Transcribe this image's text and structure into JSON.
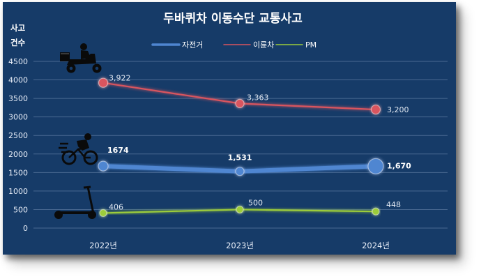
{
  "chart_data": {
    "type": "line",
    "title": "두바퀴차 이동수단 교통사고",
    "ylabel_line1": "사고",
    "ylabel_line2": "건수",
    "categories": [
      "2022년",
      "2023년",
      "2024년"
    ],
    "ylim": [
      0,
      4500
    ],
    "yticks": [
      0,
      500,
      1000,
      1500,
      2000,
      2500,
      3000,
      3500,
      4000,
      4500
    ],
    "grid": true,
    "legend_position": "top",
    "series": [
      {
        "name": "자전거",
        "values": [
          1674,
          1531,
          1670
        ],
        "labels": [
          "1674",
          "1,531",
          "1,670"
        ],
        "color": "#4f86d1",
        "label_color": "#ffffff"
      },
      {
        "name": "이륜차",
        "values": [
          3922,
          3363,
          3200
        ],
        "labels": [
          "3,922",
          "3,363",
          "3,200"
        ],
        "color": "#d9555f",
        "label_color": "#dfe6f0"
      },
      {
        "name": "PM",
        "values": [
          406,
          500,
          448
        ],
        "labels": [
          "406",
          "500",
          "448"
        ],
        "color": "#9ccc3a",
        "label_color": "#dfe6f0"
      }
    ],
    "icons": [
      "delivery-motorcycle-icon",
      "bicycle-rider-icon",
      "electric-scooter-icon"
    ]
  }
}
